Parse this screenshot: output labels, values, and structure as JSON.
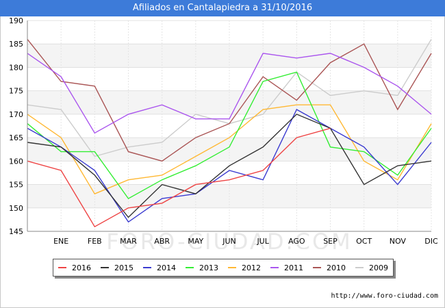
{
  "title": "Afiliados en Cantalapiedra a 31/10/2016",
  "footer": "http://www.foro-ciudad.com",
  "watermark": "FORO-CIUDAD.COM",
  "chart_data": {
    "type": "line",
    "categories": [
      "",
      "ENE",
      "FEB",
      "MAR",
      "ABR",
      "MAY",
      "JUN",
      "JUL",
      "AGO",
      "SEP",
      "OCT",
      "NOV",
      "DIC"
    ],
    "ylim": [
      145,
      190
    ],
    "yticks": [
      145,
      150,
      155,
      160,
      165,
      170,
      175,
      180,
      185,
      190
    ],
    "grid": true,
    "legend_position": "bottom",
    "series": [
      {
        "name": "2016",
        "color": "#ee4444",
        "values": [
          160,
          158,
          146,
          150,
          151,
          155,
          156,
          158,
          165,
          167,
          null,
          null,
          null
        ]
      },
      {
        "name": "2015",
        "color": "#333333",
        "values": [
          164,
          163,
          157,
          148,
          155,
          153,
          159,
          163,
          170,
          167,
          155,
          159,
          160
        ]
      },
      {
        "name": "2014",
        "color": "#3a3ad0",
        "values": [
          167,
          163,
          158,
          147,
          152,
          153,
          158,
          156,
          171,
          167,
          163,
          155,
          164
        ]
      },
      {
        "name": "2013",
        "color": "#33ee33",
        "values": [
          168,
          162,
          162,
          152,
          156,
          159,
          163,
          177,
          179,
          163,
          162,
          157,
          167
        ]
      },
      {
        "name": "2012",
        "color": "#ffb833",
        "values": [
          170,
          165,
          153,
          156,
          157,
          161,
          165,
          171,
          172,
          172,
          160,
          156,
          168
        ]
      },
      {
        "name": "2011",
        "color": "#aa55ee",
        "values": [
          183,
          178,
          166,
          170,
          172,
          169,
          169,
          183,
          182,
          183,
          180,
          176,
          170
        ]
      },
      {
        "name": "2010",
        "color": "#aa5555",
        "values": [
          186,
          177,
          176,
          162,
          160,
          165,
          168,
          178,
          173,
          181,
          185,
          171,
          183
        ]
      },
      {
        "name": "2009",
        "color": "#cccccc",
        "values": [
          172,
          171,
          161,
          163,
          164,
          170,
          168,
          170,
          179,
          174,
          175,
          174,
          186
        ]
      }
    ]
  }
}
